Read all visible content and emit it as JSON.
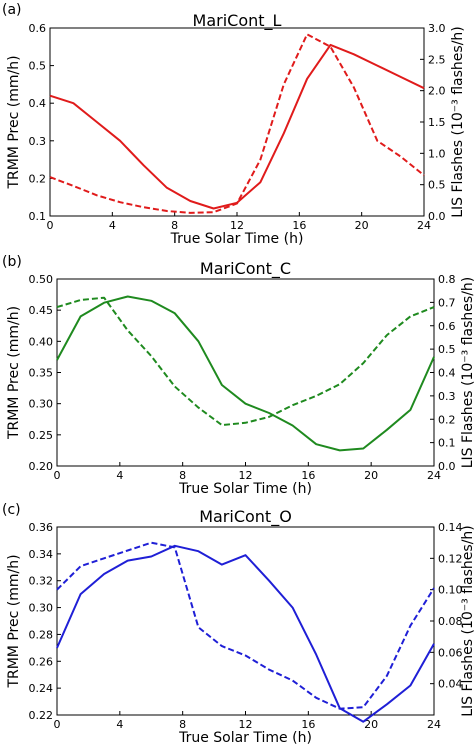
{
  "chart_data": [
    {
      "type": "line",
      "panel_label": "(a)",
      "title": "MariCont_L",
      "xlabel": "True Solar Time (h)",
      "ylabel": "TRMM Prec (mm/h)",
      "y2label": "LIS Flashes (10⁻³ flashes/h)",
      "xlim": [
        0,
        24
      ],
      "ylim": [
        0.1,
        0.6
      ],
      "y2lim": [
        0,
        3.0
      ],
      "xticks": [
        "0",
        "4",
        "8",
        "12",
        "16",
        "20",
        "24"
      ],
      "yticks": [
        "0.1",
        "0.2",
        "0.3",
        "0.4",
        "0.5",
        "0.6"
      ],
      "y2ticks": [
        "0.0",
        "0.5",
        "1.0",
        "1.5",
        "2.0",
        "2.5",
        "3.0"
      ],
      "color": "#e01b1b",
      "series": [
        {
          "style": "solid",
          "axis": "left",
          "x": [
            0,
            1.5,
            3,
            4.5,
            6,
            7.5,
            9,
            10.5,
            12,
            13.5,
            15,
            16.5,
            18,
            19.5,
            21,
            22.5,
            24
          ],
          "y": [
            0.42,
            0.4,
            0.35,
            0.3,
            0.235,
            0.175,
            0.14,
            0.12,
            0.135,
            0.19,
            0.32,
            0.465,
            0.555,
            0.53,
            0.5,
            0.47,
            0.44
          ]
        },
        {
          "style": "dashed",
          "axis": "right",
          "x": [
            0,
            1.5,
            3,
            4.5,
            6,
            7.5,
            9,
            10.5,
            12,
            13.5,
            15,
            16.5,
            18,
            19.5,
            21,
            22.5,
            24
          ],
          "y": [
            0.62,
            0.48,
            0.33,
            0.22,
            0.14,
            0.08,
            0.05,
            0.06,
            0.2,
            0.9,
            2.1,
            2.9,
            2.7,
            2.05,
            1.2,
            0.95,
            0.65
          ]
        }
      ]
    },
    {
      "type": "line",
      "panel_label": "(b)",
      "title": "MariCont_C",
      "xlabel": "True Solar Time (h)",
      "ylabel": "TRMM Prec (mm/h)",
      "y2label": "LIS Flashes (10⁻³ flashes/h)",
      "xlim": [
        0,
        24
      ],
      "ylim": [
        0.2,
        0.5
      ],
      "y2lim": [
        0,
        0.8
      ],
      "xticks": [
        "0",
        "4",
        "8",
        "12",
        "16",
        "20",
        "24"
      ],
      "yticks": [
        "0.20",
        "0.25",
        "0.30",
        "0.35",
        "0.40",
        "0.45",
        "0.50"
      ],
      "y2ticks": [
        "0.0",
        "0.1",
        "0.2",
        "0.3",
        "0.4",
        "0.5",
        "0.6",
        "0.7",
        "0.8"
      ],
      "color": "#1f8a1f",
      "series": [
        {
          "style": "solid",
          "axis": "left",
          "x": [
            0,
            1.5,
            3,
            4.5,
            6,
            7.5,
            9,
            10.5,
            12,
            13.5,
            15,
            16.5,
            18,
            19.5,
            21,
            22.5,
            24
          ],
          "y": [
            0.37,
            0.44,
            0.462,
            0.472,
            0.465,
            0.445,
            0.4,
            0.33,
            0.3,
            0.285,
            0.265,
            0.235,
            0.225,
            0.228,
            0.258,
            0.29,
            0.375
          ]
        },
        {
          "style": "dashed",
          "axis": "right",
          "x": [
            0,
            1.5,
            3,
            4.5,
            6,
            7.5,
            9,
            10.5,
            12,
            13.5,
            15,
            16.5,
            18,
            19.5,
            21,
            22.5,
            24
          ],
          "y": [
            0.68,
            0.71,
            0.72,
            0.58,
            0.47,
            0.34,
            0.25,
            0.175,
            0.185,
            0.21,
            0.26,
            0.3,
            0.35,
            0.44,
            0.56,
            0.64,
            0.68
          ]
        }
      ]
    },
    {
      "type": "line",
      "panel_label": "(c)",
      "title": "MariCont_O",
      "xlabel": "True Solar Time (h)",
      "ylabel": "TRMM Prec (mm/h)",
      "y2label": "LIS Flashes (10⁻³ flashes/h)",
      "xlim": [
        0,
        24
      ],
      "ylim": [
        0.22,
        0.36
      ],
      "y2lim": [
        0.02,
        0.14
      ],
      "xticks": [
        "0",
        "4",
        "8",
        "12",
        "16",
        "20",
        "24"
      ],
      "yticks": [
        "0.22",
        "0.24",
        "0.26",
        "0.28",
        "0.30",
        "0.32",
        "0.34",
        "0.36"
      ],
      "y2ticks": [
        "0.04",
        "0.06",
        "0.08",
        "0.10",
        "0.12",
        "0.14"
      ],
      "color": "#1f1fd6",
      "series": [
        {
          "style": "solid",
          "axis": "left",
          "x": [
            0,
            1.5,
            3,
            4.5,
            6,
            7.5,
            9,
            10.5,
            12,
            13.5,
            15,
            16.5,
            18,
            19.5,
            21,
            22.5,
            24
          ],
          "y": [
            0.27,
            0.31,
            0.325,
            0.335,
            0.338,
            0.346,
            0.342,
            0.332,
            0.339,
            0.32,
            0.3,
            0.265,
            0.225,
            0.215,
            0.228,
            0.242,
            0.273
          ]
        },
        {
          "style": "dashed",
          "axis": "right",
          "x": [
            0,
            1.5,
            3,
            4.5,
            6,
            7.5,
            9,
            10.5,
            12,
            13.5,
            15,
            16.5,
            18,
            19.5,
            21,
            22.5,
            24
          ],
          "y": [
            0.1,
            0.115,
            0.12,
            0.125,
            0.13,
            0.127,
            0.076,
            0.064,
            0.058,
            0.049,
            0.042,
            0.031,
            0.024,
            0.025,
            0.045,
            0.077,
            0.101
          ]
        }
      ]
    }
  ]
}
